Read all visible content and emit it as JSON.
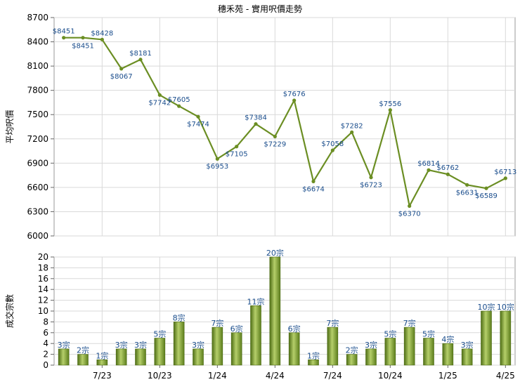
{
  "chart": {
    "title": "穗禾苑 - 實用呎價走勢"
  },
  "chart_data": [
    {
      "type": "line",
      "title": "穗禾苑 - 實用呎價走勢",
      "ylabel": "平均呎價",
      "ylim": [
        6000,
        8700
      ],
      "yticks": [
        6000,
        6300,
        6600,
        6900,
        7200,
        7500,
        7800,
        8100,
        8400,
        8700
      ],
      "color": "#6b8e23",
      "grid": true,
      "values": [
        8451,
        8451,
        8428,
        8067,
        8181,
        7742,
        7605,
        7474,
        6953,
        7105,
        7384,
        7229,
        7676,
        6674,
        7058,
        7282,
        6723,
        7556,
        6370,
        6814,
        6762,
        6631,
        6589,
        6713
      ],
      "labels": [
        "$8451",
        "$8451",
        "$8428",
        "$8067",
        "$8181",
        "$7742",
        "$7605",
        "$7474",
        "$6953",
        "$7105",
        "$7384",
        "$7229",
        "$7676",
        "$6674",
        "$7058",
        "$7282",
        "$6723",
        "$7556",
        "$6370",
        "$6814",
        "$6762",
        "$6631",
        "$6589",
        "$6713"
      ]
    },
    {
      "type": "bar",
      "ylabel": "成交宗數",
      "ylim": [
        0,
        20
      ],
      "yticks": [
        0,
        2,
        4,
        6,
        8,
        10,
        12,
        14,
        16,
        18,
        20
      ],
      "xticks": [
        "7/23",
        "10/23",
        "1/24",
        "4/24",
        "7/24",
        "10/24",
        "1/25",
        "4/25"
      ],
      "color": "#6b8e23",
      "grid": true,
      "values": [
        3,
        2,
        1,
        3,
        3,
        5,
        8,
        3,
        7,
        6,
        11,
        20,
        6,
        1,
        7,
        2,
        3,
        5,
        7,
        5,
        4,
        3,
        10,
        10
      ],
      "labels": [
        "3宗",
        "2宗",
        "1宗",
        "3宗",
        "3宗",
        "5宗",
        "8宗",
        "3宗",
        "7宗",
        "6宗",
        "11宗",
        "20宗",
        "6宗",
        "1宗",
        "7宗",
        "2宗",
        "3宗",
        "5宗",
        "7宗",
        "5宗",
        "4宗",
        "3宗",
        "10宗",
        "10宗"
      ]
    }
  ]
}
